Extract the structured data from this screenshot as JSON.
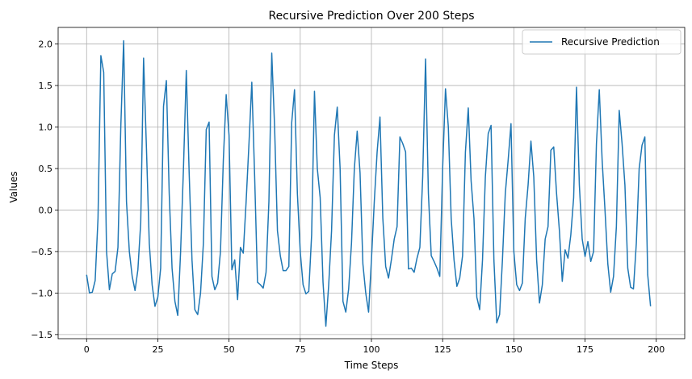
{
  "chart_data": {
    "type": "line",
    "title": "Recursive Prediction Over 200 Steps",
    "xlabel": "Time Steps",
    "ylabel": "Values",
    "xlim": [
      -10,
      210
    ],
    "ylim": [
      -1.55,
      2.2
    ],
    "xticks": [
      0,
      25,
      50,
      75,
      100,
      125,
      150,
      175,
      200
    ],
    "xtick_labels": [
      "0",
      "25",
      "50",
      "75",
      "100",
      "125",
      "150",
      "175",
      "200"
    ],
    "yticks": [
      -1.5,
      -1.0,
      -0.5,
      0.0,
      0.5,
      1.0,
      1.5,
      2.0
    ],
    "ytick_labels": [
      "−1.5",
      "−1.0",
      "−0.5",
      "0.0",
      "0.5",
      "1.0",
      "1.5",
      "2.0"
    ],
    "grid": true,
    "legend_position": "top-right",
    "series": [
      {
        "name": "Recursive Prediction",
        "color": "#1f77b4",
        "values": [
          -0.78,
          -1.0,
          -0.99,
          -0.85,
          -0.1,
          1.86,
          1.66,
          -0.5,
          -0.96,
          -0.77,
          -0.74,
          -0.45,
          1.0,
          2.04,
          0.1,
          -0.5,
          -0.8,
          -0.97,
          -0.72,
          -0.15,
          1.83,
          0.75,
          -0.4,
          -0.9,
          -1.16,
          -1.05,
          -0.7,
          1.25,
          1.56,
          0.2,
          -0.7,
          -1.1,
          -1.27,
          -0.5,
          0.5,
          1.68,
          0.45,
          -0.6,
          -1.2,
          -1.26,
          -1.0,
          -0.4,
          0.97,
          1.06,
          -0.8,
          -0.96,
          -0.88,
          -0.5,
          0.6,
          1.39,
          0.9,
          -0.72,
          -0.6,
          -1.08,
          -0.45,
          -0.52,
          0.1,
          0.8,
          1.54,
          0.4,
          -0.87,
          -0.9,
          -0.94,
          -0.75,
          0.1,
          1.89,
          1.0,
          -0.25,
          -0.55,
          -0.73,
          -0.73,
          -0.68,
          1.05,
          1.45,
          0.2,
          -0.5,
          -0.9,
          -1.01,
          -0.98,
          -0.3,
          1.43,
          0.5,
          0.15,
          -0.87,
          -1.4,
          -0.9,
          -0.25,
          0.9,
          1.24,
          0.5,
          -1.1,
          -1.23,
          -0.95,
          -0.4,
          0.5,
          0.95,
          0.45,
          -0.65,
          -1.0,
          -1.23,
          -0.6,
          0.1,
          0.7,
          1.12,
          -0.1,
          -0.68,
          -0.82,
          -0.6,
          -0.35,
          -0.2,
          0.88,
          0.8,
          0.7,
          -0.71,
          -0.7,
          -0.75,
          -0.58,
          -0.45,
          0.4,
          1.82,
          0.2,
          -0.55,
          -0.62,
          -0.7,
          -0.8,
          0.5,
          1.46,
          1.0,
          -0.1,
          -0.6,
          -0.92,
          -0.82,
          -0.55,
          0.7,
          1.23,
          0.35,
          -0.1,
          -1.05,
          -1.2,
          -0.6,
          0.4,
          0.92,
          1.02,
          -0.6,
          -1.36,
          -1.26,
          -0.6,
          0.2,
          0.6,
          1.04,
          -0.5,
          -0.9,
          -0.97,
          -0.88,
          -0.1,
          0.3,
          0.83,
          0.4,
          -0.6,
          -1.12,
          -0.9,
          -0.35,
          -0.2,
          0.72,
          0.76,
          0.2,
          -0.25,
          -0.86,
          -0.48,
          -0.58,
          -0.3,
          0.15,
          1.48,
          0.3,
          -0.35,
          -0.56,
          -0.38,
          -0.62,
          -0.5,
          0.8,
          1.45,
          0.6,
          0.0,
          -0.65,
          -0.99,
          -0.8,
          -0.2,
          1.2,
          0.8,
          0.3,
          -0.7,
          -0.93,
          -0.95,
          -0.4,
          0.5,
          0.78,
          0.88,
          -0.78,
          -1.16
        ]
      }
    ]
  }
}
